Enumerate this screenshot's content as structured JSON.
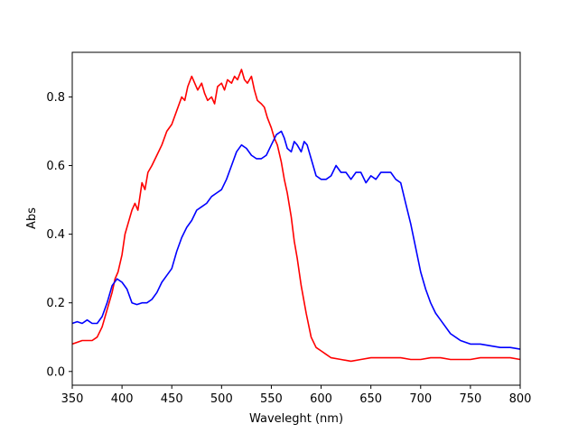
{
  "chart_data": {
    "type": "line",
    "title": "",
    "xlabel": "Waveleght (nm)",
    "ylabel": "Abs",
    "xlim": [
      350,
      800
    ],
    "ylim": [
      -0.04,
      0.93
    ],
    "xticks": [
      350,
      400,
      450,
      500,
      550,
      600,
      650,
      700,
      750,
      800
    ],
    "yticks": [
      0.0,
      0.2,
      0.4,
      0.6,
      0.8
    ],
    "xtick_labels": [
      "350",
      "400",
      "450",
      "500",
      "550",
      "600",
      "650",
      "700",
      "750",
      "800"
    ],
    "ytick_labels": [
      "0.0",
      "0.2",
      "0.4",
      "0.6",
      "0.8"
    ],
    "grid": false,
    "legend": false,
    "series": [
      {
        "color": "#ff0000",
        "x": [
          350,
          360,
          370,
          375,
          380,
          385,
          390,
          393,
          396,
          400,
          403,
          406,
          410,
          413,
          416,
          420,
          423,
          426,
          430,
          435,
          440,
          445,
          450,
          455,
          460,
          463,
          466,
          470,
          473,
          476,
          480,
          483,
          486,
          490,
          493,
          496,
          500,
          503,
          506,
          510,
          513,
          516,
          520,
          523,
          526,
          530,
          533,
          536,
          540,
          543,
          546,
          550,
          553,
          556,
          560,
          563,
          566,
          570,
          573,
          576,
          580,
          585,
          590,
          595,
          600,
          605,
          610,
          620,
          630,
          640,
          650,
          660,
          670,
          680,
          690,
          700,
          710,
          720,
          730,
          740,
          750,
          760,
          770,
          780,
          790,
          800
        ],
        "y": [
          0.08,
          0.09,
          0.09,
          0.1,
          0.13,
          0.18,
          0.23,
          0.27,
          0.29,
          0.34,
          0.4,
          0.43,
          0.47,
          0.49,
          0.47,
          0.55,
          0.53,
          0.58,
          0.6,
          0.63,
          0.66,
          0.7,
          0.72,
          0.76,
          0.8,
          0.79,
          0.83,
          0.86,
          0.84,
          0.82,
          0.84,
          0.81,
          0.79,
          0.8,
          0.78,
          0.83,
          0.84,
          0.82,
          0.85,
          0.84,
          0.86,
          0.85,
          0.88,
          0.85,
          0.84,
          0.86,
          0.82,
          0.79,
          0.78,
          0.77,
          0.74,
          0.71,
          0.68,
          0.66,
          0.61,
          0.56,
          0.52,
          0.45,
          0.38,
          0.33,
          0.25,
          0.17,
          0.1,
          0.07,
          0.06,
          0.05,
          0.04,
          0.035,
          0.03,
          0.035,
          0.04,
          0.04,
          0.04,
          0.04,
          0.035,
          0.035,
          0.04,
          0.04,
          0.035,
          0.035,
          0.035,
          0.04,
          0.04,
          0.04,
          0.04,
          0.035
        ]
      },
      {
        "color": "#0000ff",
        "x": [
          350,
          355,
          360,
          365,
          370,
          375,
          380,
          385,
          390,
          395,
          400,
          405,
          410,
          415,
          420,
          425,
          430,
          435,
          440,
          445,
          450,
          455,
          460,
          465,
          470,
          475,
          480,
          485,
          490,
          495,
          500,
          505,
          510,
          515,
          520,
          525,
          530,
          535,
          540,
          545,
          550,
          555,
          560,
          563,
          566,
          570,
          573,
          576,
          580,
          583,
          586,
          590,
          595,
          600,
          605,
          610,
          615,
          620,
          625,
          630,
          635,
          640,
          645,
          650,
          655,
          660,
          665,
          670,
          675,
          680,
          685,
          690,
          695,
          700,
          705,
          710,
          715,
          720,
          730,
          740,
          750,
          760,
          770,
          780,
          790,
          800
        ],
        "y": [
          0.14,
          0.145,
          0.14,
          0.15,
          0.14,
          0.14,
          0.16,
          0.2,
          0.25,
          0.27,
          0.26,
          0.24,
          0.2,
          0.195,
          0.2,
          0.2,
          0.21,
          0.23,
          0.26,
          0.28,
          0.3,
          0.35,
          0.39,
          0.42,
          0.44,
          0.47,
          0.48,
          0.49,
          0.51,
          0.52,
          0.53,
          0.56,
          0.6,
          0.64,
          0.66,
          0.65,
          0.63,
          0.62,
          0.62,
          0.63,
          0.66,
          0.69,
          0.7,
          0.68,
          0.65,
          0.64,
          0.67,
          0.66,
          0.64,
          0.67,
          0.66,
          0.62,
          0.57,
          0.56,
          0.56,
          0.57,
          0.6,
          0.58,
          0.58,
          0.56,
          0.58,
          0.58,
          0.55,
          0.57,
          0.56,
          0.58,
          0.58,
          0.58,
          0.56,
          0.55,
          0.49,
          0.43,
          0.36,
          0.29,
          0.24,
          0.2,
          0.17,
          0.15,
          0.11,
          0.09,
          0.08,
          0.08,
          0.075,
          0.07,
          0.07,
          0.065
        ]
      }
    ]
  }
}
